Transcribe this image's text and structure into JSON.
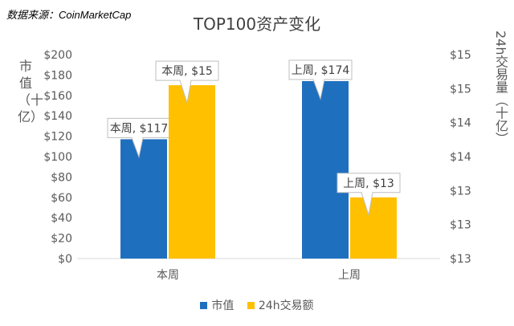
{
  "source_note": "数据来源：CoinMarketCap",
  "chart_data": {
    "type": "bar",
    "title": "TOP100资产变化",
    "categories": [
      "本周",
      "上周"
    ],
    "ylabel_left": "市值（十亿）",
    "ylabel_right": "24h交易量（十亿）",
    "ylim": [
      0,
      200
    ],
    "y_ticks": [
      "$0",
      "$20",
      "$40",
      "$60",
      "$80",
      "$100",
      "$120",
      "$140",
      "$160",
      "$180",
      "$200"
    ],
    "y2_ticks": [
      "$13",
      "$13",
      "$13",
      "$14",
      "$14",
      "$15",
      "$15"
    ],
    "legend_position": "bottom",
    "grid": false,
    "series": [
      {
        "name": "市值",
        "axis": "left",
        "color": "#1F6FBF",
        "values": [
          117,
          174
        ],
        "data_labels": [
          "本周, $117",
          "上周, $174"
        ]
      },
      {
        "name": "24h交易额",
        "axis": "right",
        "color": "#FFC000",
        "values": [
          15,
          13
        ],
        "bar_heights_left_scale": [
          170,
          60
        ],
        "data_labels": [
          "本周, $15",
          "上周, $13"
        ]
      }
    ]
  }
}
